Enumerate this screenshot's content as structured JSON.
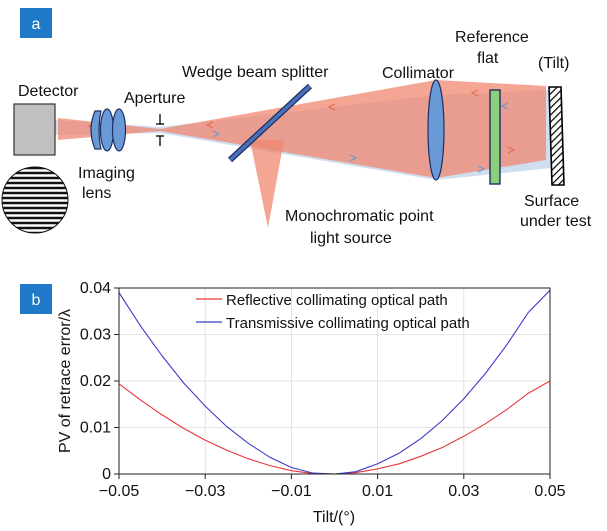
{
  "panel_a": {
    "badge": "a",
    "labels": {
      "detector": "Detector",
      "imaging_lens_1": "Imaging",
      "imaging_lens_2": "lens",
      "aperture": "Aperture",
      "wedge": "Wedge beam splitter",
      "collimator": "Collimator",
      "reference_1": "Reference",
      "reference_2": "flat",
      "tilt": "(Tilt)",
      "source_1": "Monochromatic point",
      "source_2": "light source",
      "surface_1": "Surface",
      "surface_2": "under test"
    }
  },
  "panel_b": {
    "badge": "b",
    "chart_data": {
      "type": "line",
      "title": "",
      "xlabel": "Tilt/(°)",
      "ylabel": "PV of retrace error/λ",
      "xlim": [
        -0.05,
        0.05
      ],
      "ylim": [
        0,
        0.04
      ],
      "xticks": [
        -0.05,
        -0.03,
        -0.01,
        0.01,
        0.03,
        0.05
      ],
      "xtick_labels": [
        "−0.05",
        "−0.03",
        "−0.01",
        "0.01",
        "0.03",
        "0.05"
      ],
      "yticks": [
        0,
        0.01,
        0.02,
        0.03,
        0.04
      ],
      "ytick_labels": [
        "0",
        "0.01",
        "0.02",
        "0.03",
        "0.04"
      ],
      "grid": true,
      "legend_position": "top-center",
      "series": [
        {
          "name": "Reflective collimating optical path",
          "color": "#e8383d",
          "x": [
            -0.05,
            -0.045,
            -0.04,
            -0.035,
            -0.03,
            -0.025,
            -0.02,
            -0.015,
            -0.01,
            -0.005,
            0,
            0.005,
            0.01,
            0.015,
            0.02,
            0.025,
            0.03,
            0.035,
            0.04,
            0.045,
            0.05
          ],
          "y": [
            0.0194,
            0.0159,
            0.0127,
            0.0098,
            0.0073,
            0.0051,
            0.0033,
            0.0018,
            0.0007,
            0.0001,
            0,
            0.0003,
            0.0011,
            0.0022,
            0.0038,
            0.0057,
            0.0081,
            0.0108,
            0.0139,
            0.0174,
            0.02
          ]
        },
        {
          "name": "Transmissive collimating optical path",
          "color": "#3c3cc8",
          "x": [
            -0.05,
            -0.045,
            -0.04,
            -0.035,
            -0.03,
            -0.025,
            -0.02,
            -0.015,
            -0.01,
            -0.005,
            0,
            0.005,
            0.01,
            0.015,
            0.02,
            0.025,
            0.03,
            0.035,
            0.04,
            0.045,
            0.05
          ],
          "y": [
            0.039,
            0.0318,
            0.0254,
            0.0196,
            0.0146,
            0.0102,
            0.0066,
            0.0036,
            0.0014,
            0.0002,
            0,
            0.0005,
            0.0022,
            0.0045,
            0.0076,
            0.0115,
            0.0162,
            0.0216,
            0.0278,
            0.0348,
            0.0395
          ]
        }
      ]
    }
  },
  "colors": {
    "badge": "#1f78c8",
    "beam_red": "#f0876f",
    "beam_blue": "#b0c8e8",
    "lens": "#6a9ad6",
    "reference_flat": "#8ccf7a",
    "detector": "#c0c0c0"
  }
}
